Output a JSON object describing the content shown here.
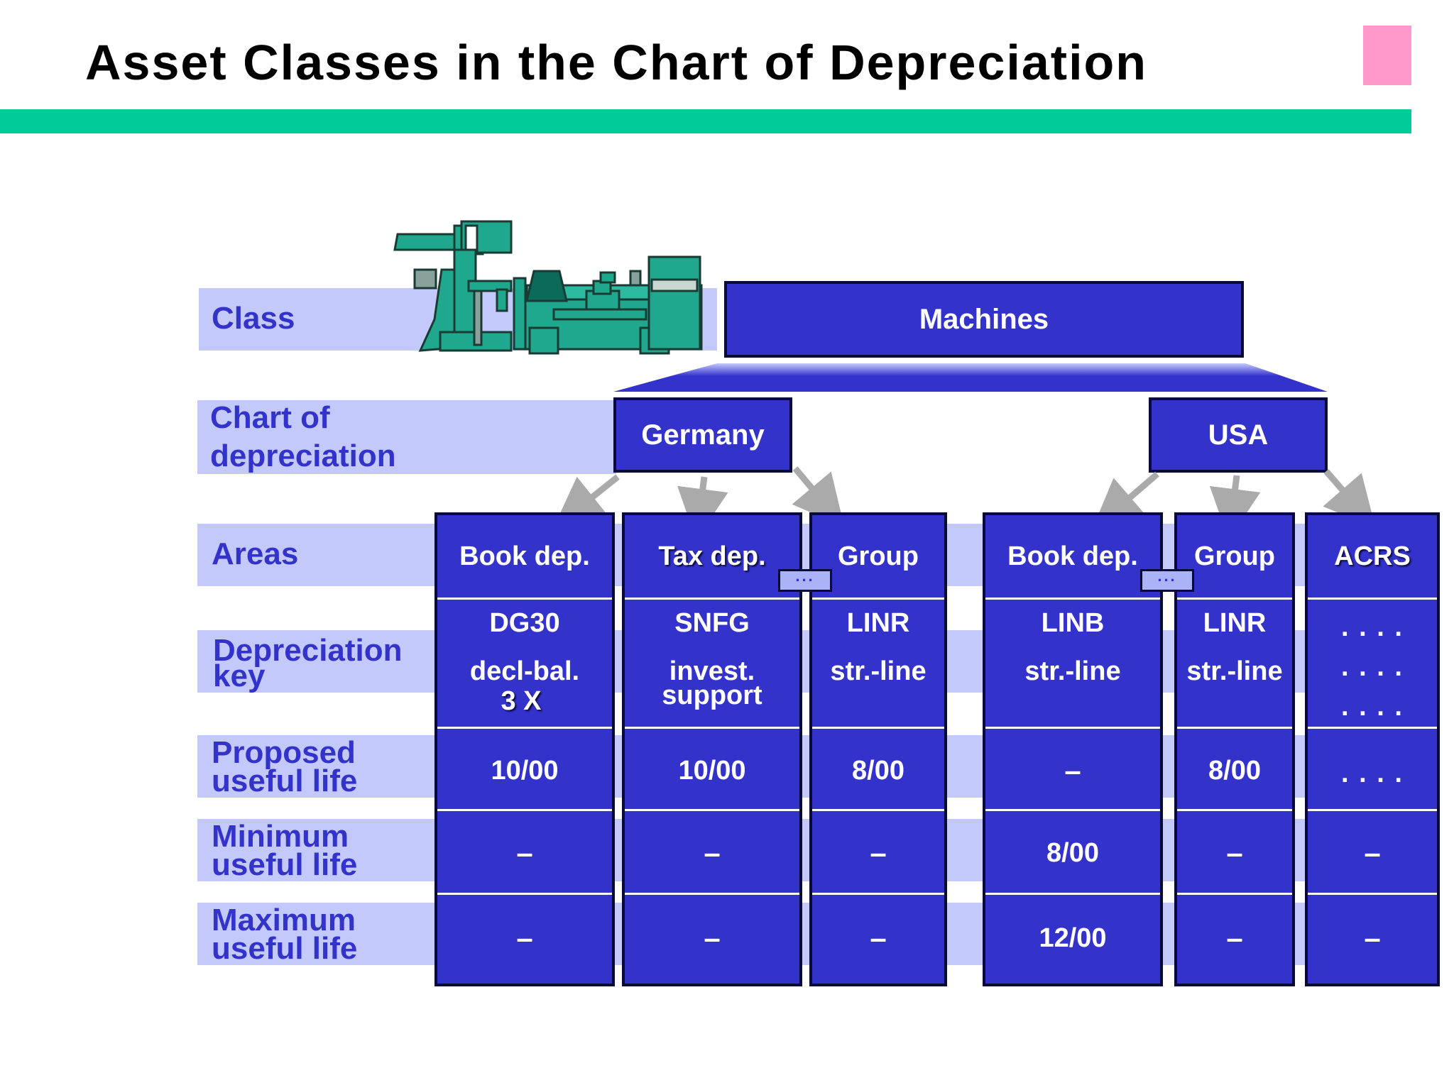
{
  "title": "Asset Classes in the Chart of Depreciation",
  "row_labels": {
    "class": "Class",
    "chart_line1": "Chart of",
    "chart_line2": "depreciation",
    "areas": "Areas",
    "dep_key_line1": "Depreciation",
    "dep_key_line2": "key",
    "proposed_line1": "Proposed",
    "proposed_line2": "useful life",
    "minimum_line1": "Minimum",
    "minimum_line2": "useful life",
    "maximum_line1": "Maximum",
    "maximum_line2": "useful life"
  },
  "asset_class": "Machines",
  "charts": [
    "Germany",
    "USA"
  ],
  "connector_text": "...",
  "columns": [
    {
      "area": "Book dep.",
      "key": "DG30",
      "method_line1": "decl-bal.",
      "method_line2": "3 X",
      "proposed": "10/00",
      "minimum": "–",
      "maximum": "–"
    },
    {
      "area": "Tax dep.",
      "key": "SNFG",
      "method_line1": "invest.",
      "method_line2": "support",
      "proposed": "10/00",
      "minimum": "–",
      "maximum": "–"
    },
    {
      "area": "Group",
      "key": "LINR",
      "method_line1": "str.-line",
      "method_line2": "",
      "proposed": "8/00",
      "minimum": "–",
      "maximum": "–"
    },
    {
      "area": "Book dep.",
      "key": "LINB",
      "method_line1": "str.-line",
      "method_line2": "",
      "proposed": "–",
      "minimum": "8/00",
      "maximum": "12/00"
    },
    {
      "area": "Group",
      "key": "LINR",
      "method_line1": "str.-line",
      "method_line2": "",
      "proposed": "8/00",
      "minimum": "–",
      "maximum": "–"
    },
    {
      "area": "ACRS",
      "key": ". . . .",
      "method_line1": ". . . .",
      "method_line2": ". . . .",
      "proposed": ". . . .",
      "minimum": "–",
      "maximum": "–"
    }
  ],
  "colors": {
    "box": "#3333cc",
    "band": "#c3cafb",
    "label": "#3333cc",
    "title_bar": "#00cc99",
    "corner": "#ff99cc",
    "machine": "#1fa88e",
    "arrow": "#aaaaaa"
  },
  "icons": [
    "lathe-machine-icon"
  ]
}
